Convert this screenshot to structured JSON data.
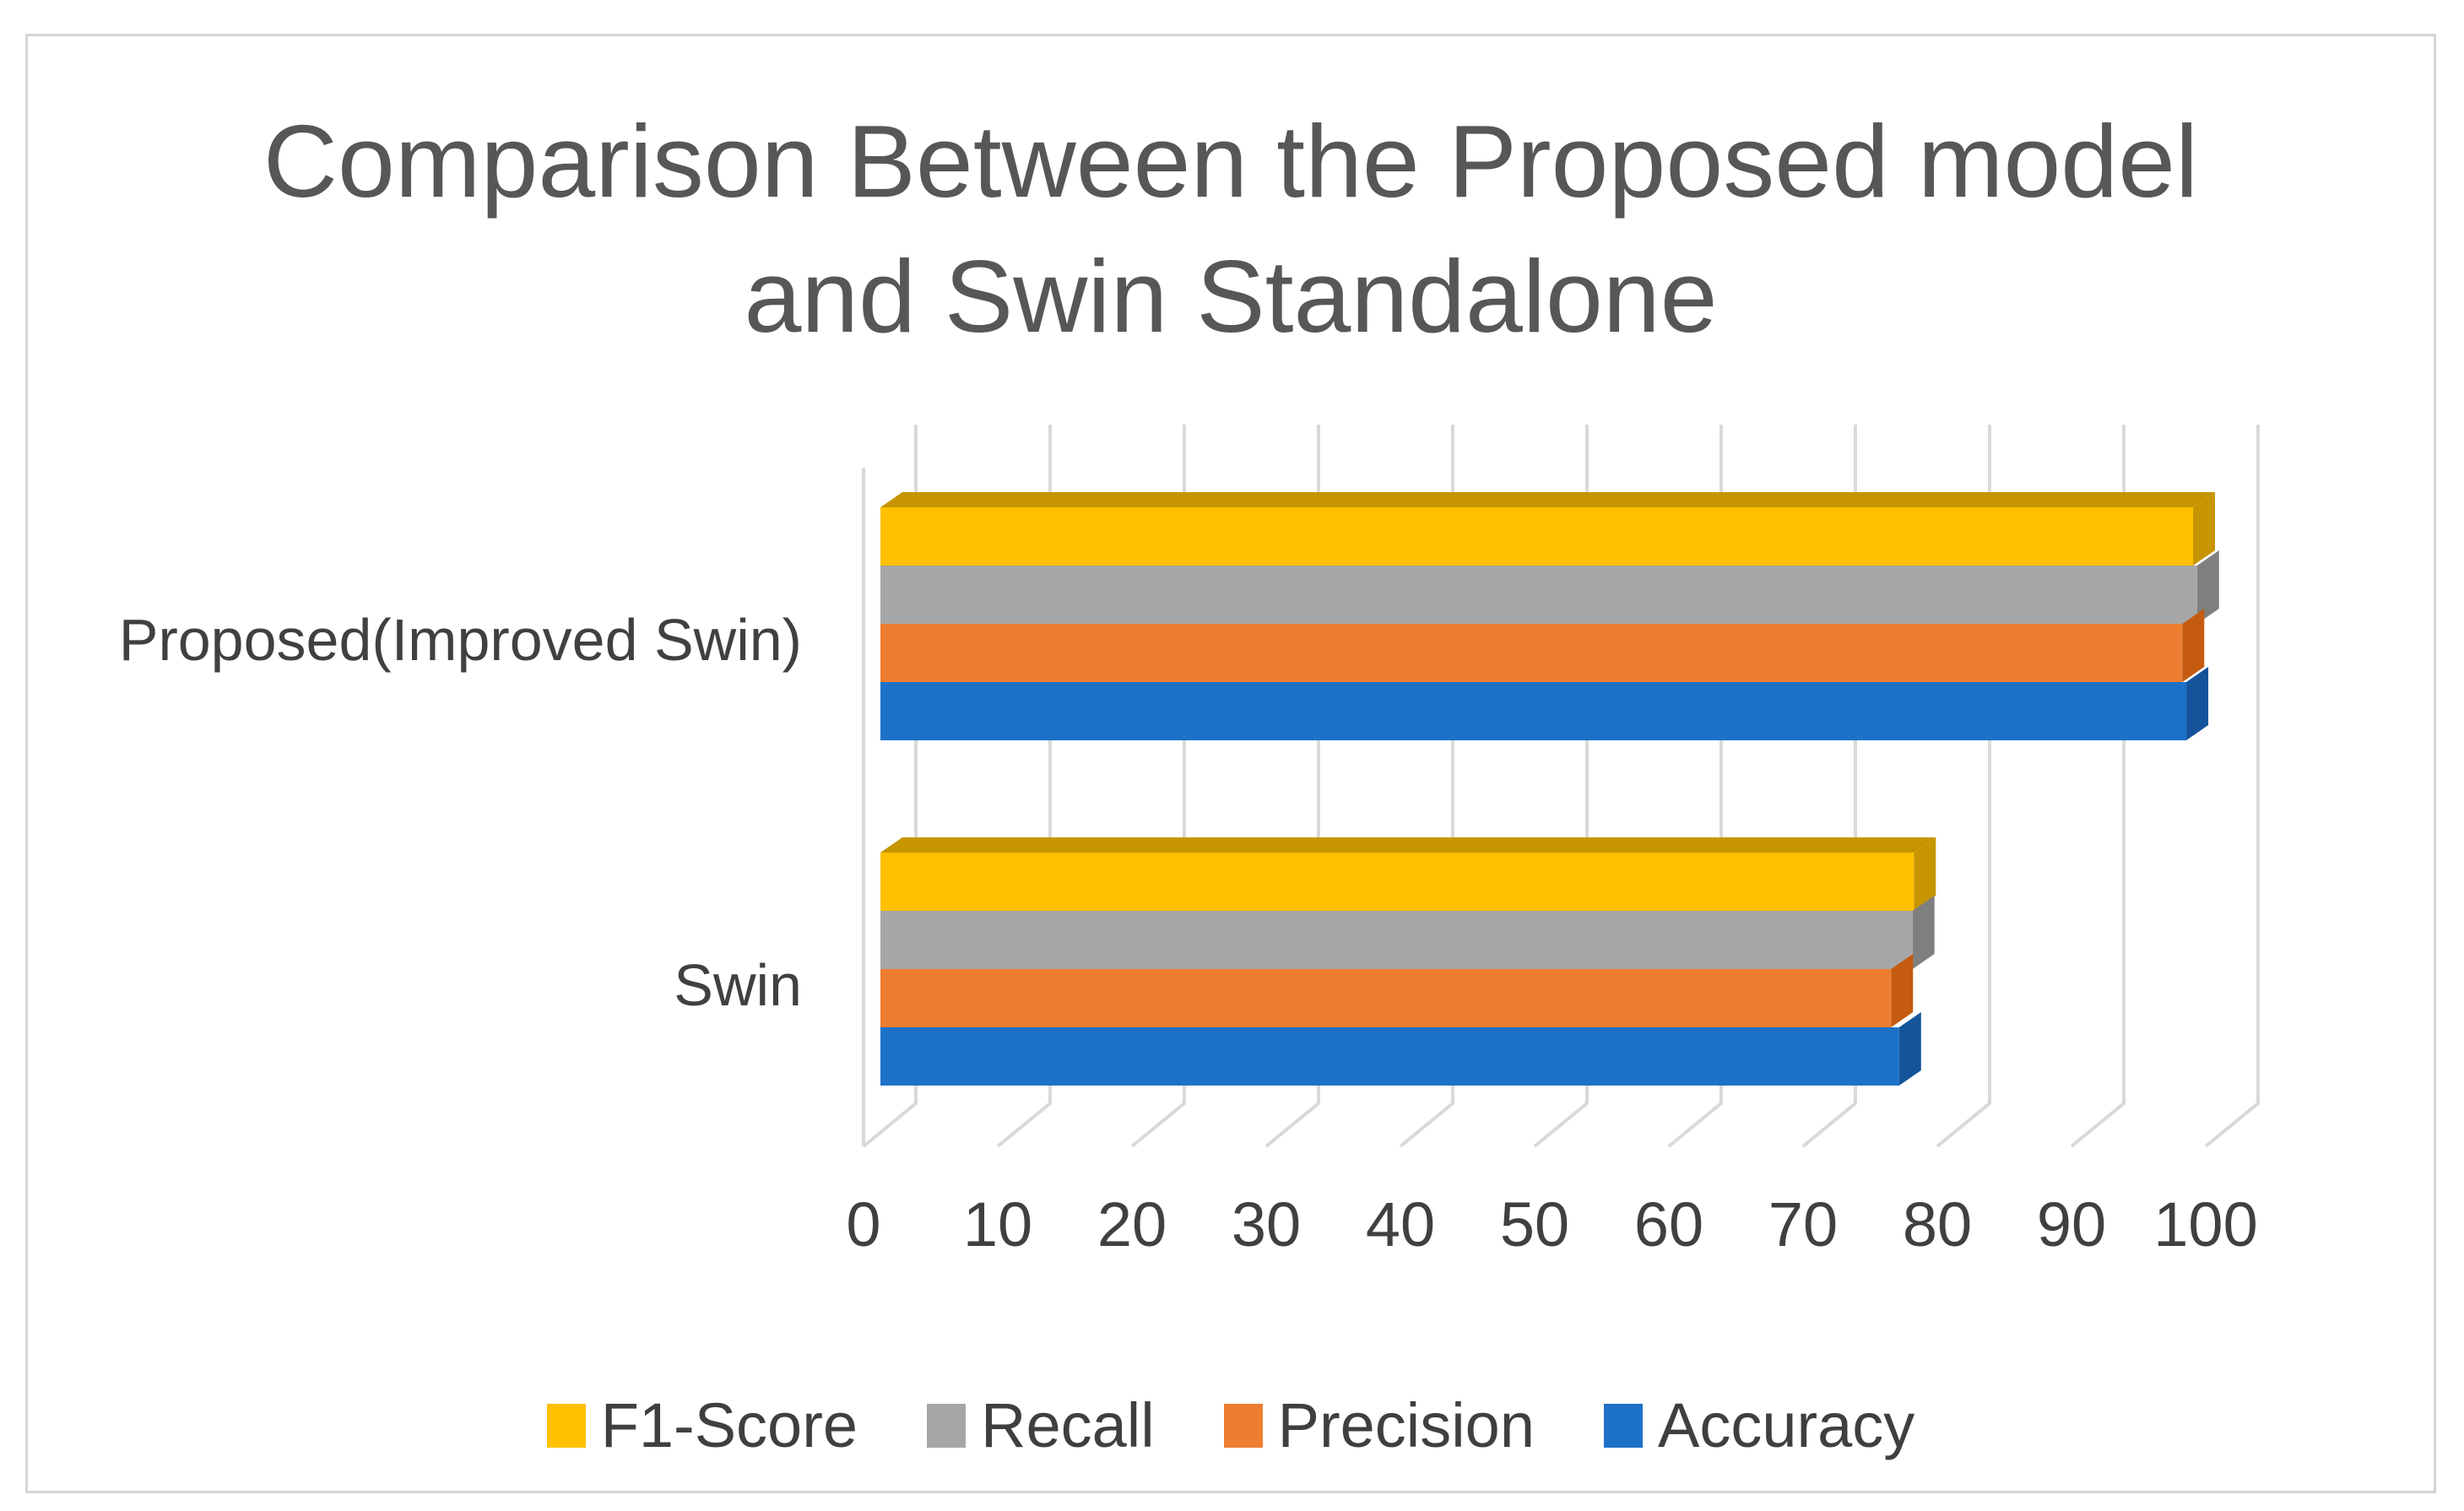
{
  "figure": {
    "background": "#ffffff",
    "border_color": "#d4d4d4"
  },
  "chart_data": {
    "type": "bar",
    "orientation": "horizontal",
    "is_3d": true,
    "title": "Comparison Between the Proposed model and Swin Standalone",
    "title_line1": "Comparison Between the Proposed model",
    "title_line2": "and Swin Standalone",
    "title_color": "#575757",
    "text_color": "#404040",
    "categories": [
      "Proposed(Improved Swin)",
      "Swin"
    ],
    "series": [
      {
        "name": "F1-Score",
        "color": "#FFC000",
        "shade": "#C79500",
        "values": [
          97.8,
          77.0
        ]
      },
      {
        "name": "Recall",
        "color": "#A6A6A6",
        "shade": "#7F7F7F",
        "values": [
          98.1,
          76.9
        ]
      },
      {
        "name": "Precision",
        "color": "#ED7D31",
        "shade": "#C55A11",
        "values": [
          97.0,
          75.3
        ]
      },
      {
        "name": "Accuracy",
        "color": "#1D72C8",
        "shade": "#15539A",
        "values": [
          97.3,
          75.9
        ]
      }
    ],
    "xlabel": "",
    "ylabel": "",
    "xlim": [
      0,
      100
    ],
    "xticks": [
      0,
      10,
      20,
      30,
      40,
      50,
      60,
      70,
      80,
      90,
      100
    ],
    "gridlines": true,
    "gridline_color": "#D9D9D9",
    "legend_position": "bottom",
    "legend_order": [
      "F1-Score",
      "Recall",
      "Precision",
      "Accuracy"
    ]
  }
}
